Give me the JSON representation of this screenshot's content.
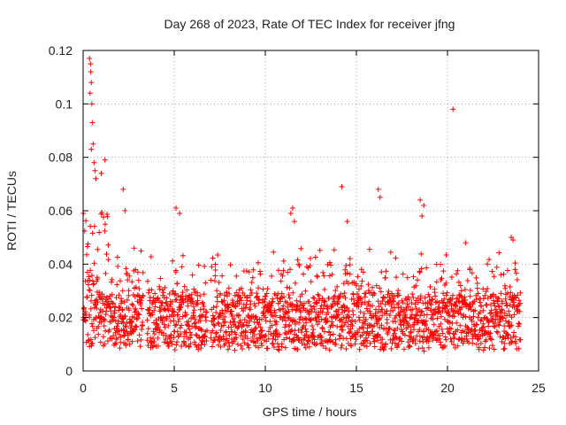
{
  "chart_data": {
    "type": "scatter",
    "title": "Day 268 of 2023, Rate Of TEC Index for receiver jfng",
    "xlabel": "GPS time / hours",
    "ylabel": "ROTI / TECUs",
    "xlim": [
      0,
      25
    ],
    "ylim": [
      0,
      0.12
    ],
    "x_ticks": [
      0,
      5,
      10,
      15,
      20,
      25
    ],
    "x_tick_labels": [
      "0",
      "5",
      "10",
      "15",
      "20",
      "25"
    ],
    "y_ticks": [
      0,
      0.02,
      0.04,
      0.06,
      0.08,
      0.1,
      0.12
    ],
    "y_tick_labels": [
      "0",
      "0.02",
      "0.04",
      "0.06",
      "0.08",
      "0.1",
      "0.12"
    ],
    "grid": true,
    "legend": "none",
    "marker": "+",
    "series_color": "#ff0000",
    "data_gaps_hours": [
      [
        3.3,
        3.5
      ],
      [
        6.8,
        7.0
      ]
    ],
    "series": [
      {
        "name": "ROTI",
        "description": "dense scatter, typical band 0.01-0.03 TECU/s from 0 to 24 h",
        "outliers": [
          {
            "x": 0.35,
            "y": 0.117
          },
          {
            "x": 0.4,
            "y": 0.115
          },
          {
            "x": 0.42,
            "y": 0.112
          },
          {
            "x": 0.45,
            "y": 0.108
          },
          {
            "x": 0.38,
            "y": 0.104
          },
          {
            "x": 0.48,
            "y": 0.1
          },
          {
            "x": 0.5,
            "y": 0.093
          },
          {
            "x": 0.55,
            "y": 0.085
          },
          {
            "x": 0.45,
            "y": 0.083
          },
          {
            "x": 0.6,
            "y": 0.078
          },
          {
            "x": 0.65,
            "y": 0.075
          },
          {
            "x": 0.7,
            "y": 0.072
          },
          {
            "x": 1.2,
            "y": 0.079
          },
          {
            "x": 1.0,
            "y": 0.074
          },
          {
            "x": 2.2,
            "y": 0.068
          },
          {
            "x": 2.3,
            "y": 0.06
          },
          {
            "x": 2.8,
            "y": 0.046
          },
          {
            "x": 5.1,
            "y": 0.061
          },
          {
            "x": 5.3,
            "y": 0.059
          },
          {
            "x": 11.5,
            "y": 0.061
          },
          {
            "x": 11.4,
            "y": 0.059
          },
          {
            "x": 11.6,
            "y": 0.056
          },
          {
            "x": 14.2,
            "y": 0.069
          },
          {
            "x": 14.5,
            "y": 0.056
          },
          {
            "x": 16.2,
            "y": 0.068
          },
          {
            "x": 16.3,
            "y": 0.065
          },
          {
            "x": 18.5,
            "y": 0.064
          },
          {
            "x": 18.7,
            "y": 0.062
          },
          {
            "x": 18.6,
            "y": 0.058
          },
          {
            "x": 20.3,
            "y": 0.098
          },
          {
            "x": 21.0,
            "y": 0.048
          },
          {
            "x": 23.5,
            "y": 0.05
          },
          {
            "x": 23.6,
            "y": 0.049
          }
        ]
      }
    ]
  }
}
